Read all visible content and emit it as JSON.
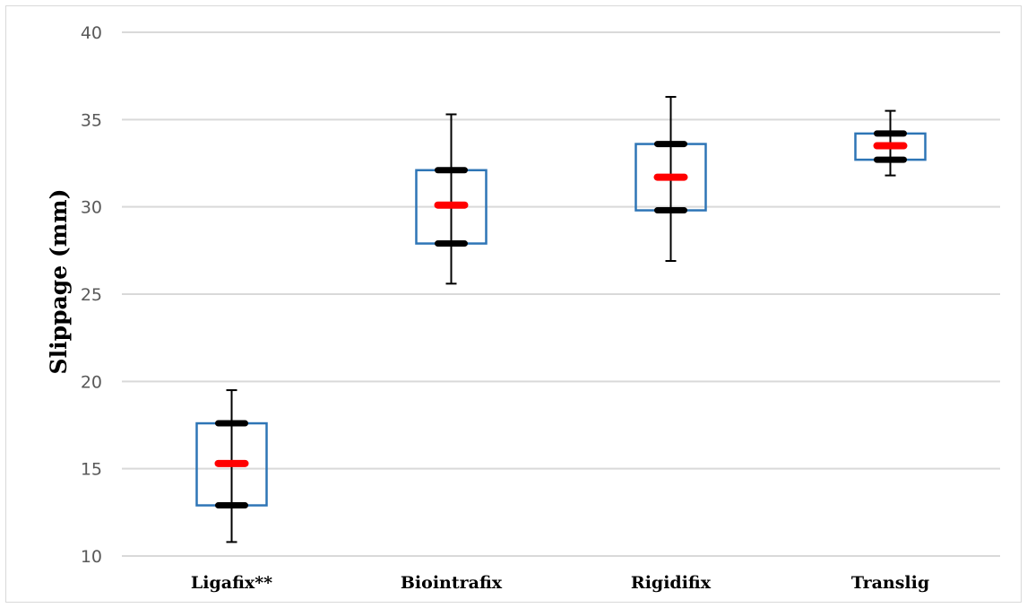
{
  "chart_data": {
    "type": "box",
    "ylabel": "Slippage (mm)",
    "xlabel": "",
    "ylim": [
      10,
      40
    ],
    "yticks": [
      "10",
      "15",
      "20",
      "25",
      "30",
      "35",
      "40"
    ],
    "grid": true,
    "categories": [
      "Ligafix**",
      "Biointrafix",
      "Rigidifix",
      "Translig"
    ],
    "boxes": [
      {
        "min": 10.8,
        "q1": 12.9,
        "mean": 15.3,
        "q3": 17.6,
        "max": 19.5
      },
      {
        "min": 25.6,
        "q1": 27.9,
        "mean": 30.1,
        "q3": 32.1,
        "max": 35.3
      },
      {
        "min": 26.9,
        "q1": 29.8,
        "mean": 31.7,
        "q3": 33.6,
        "max": 36.3
      },
      {
        "min": 31.8,
        "q1": 32.7,
        "mean": 33.5,
        "q3": 34.2,
        "max": 35.5
      }
    ],
    "colors": {
      "box": "#2E75B6",
      "mean": "#FF0000",
      "quartile": "#000000",
      "whisker": "#000000",
      "grid": "#D9D9D9"
    }
  }
}
